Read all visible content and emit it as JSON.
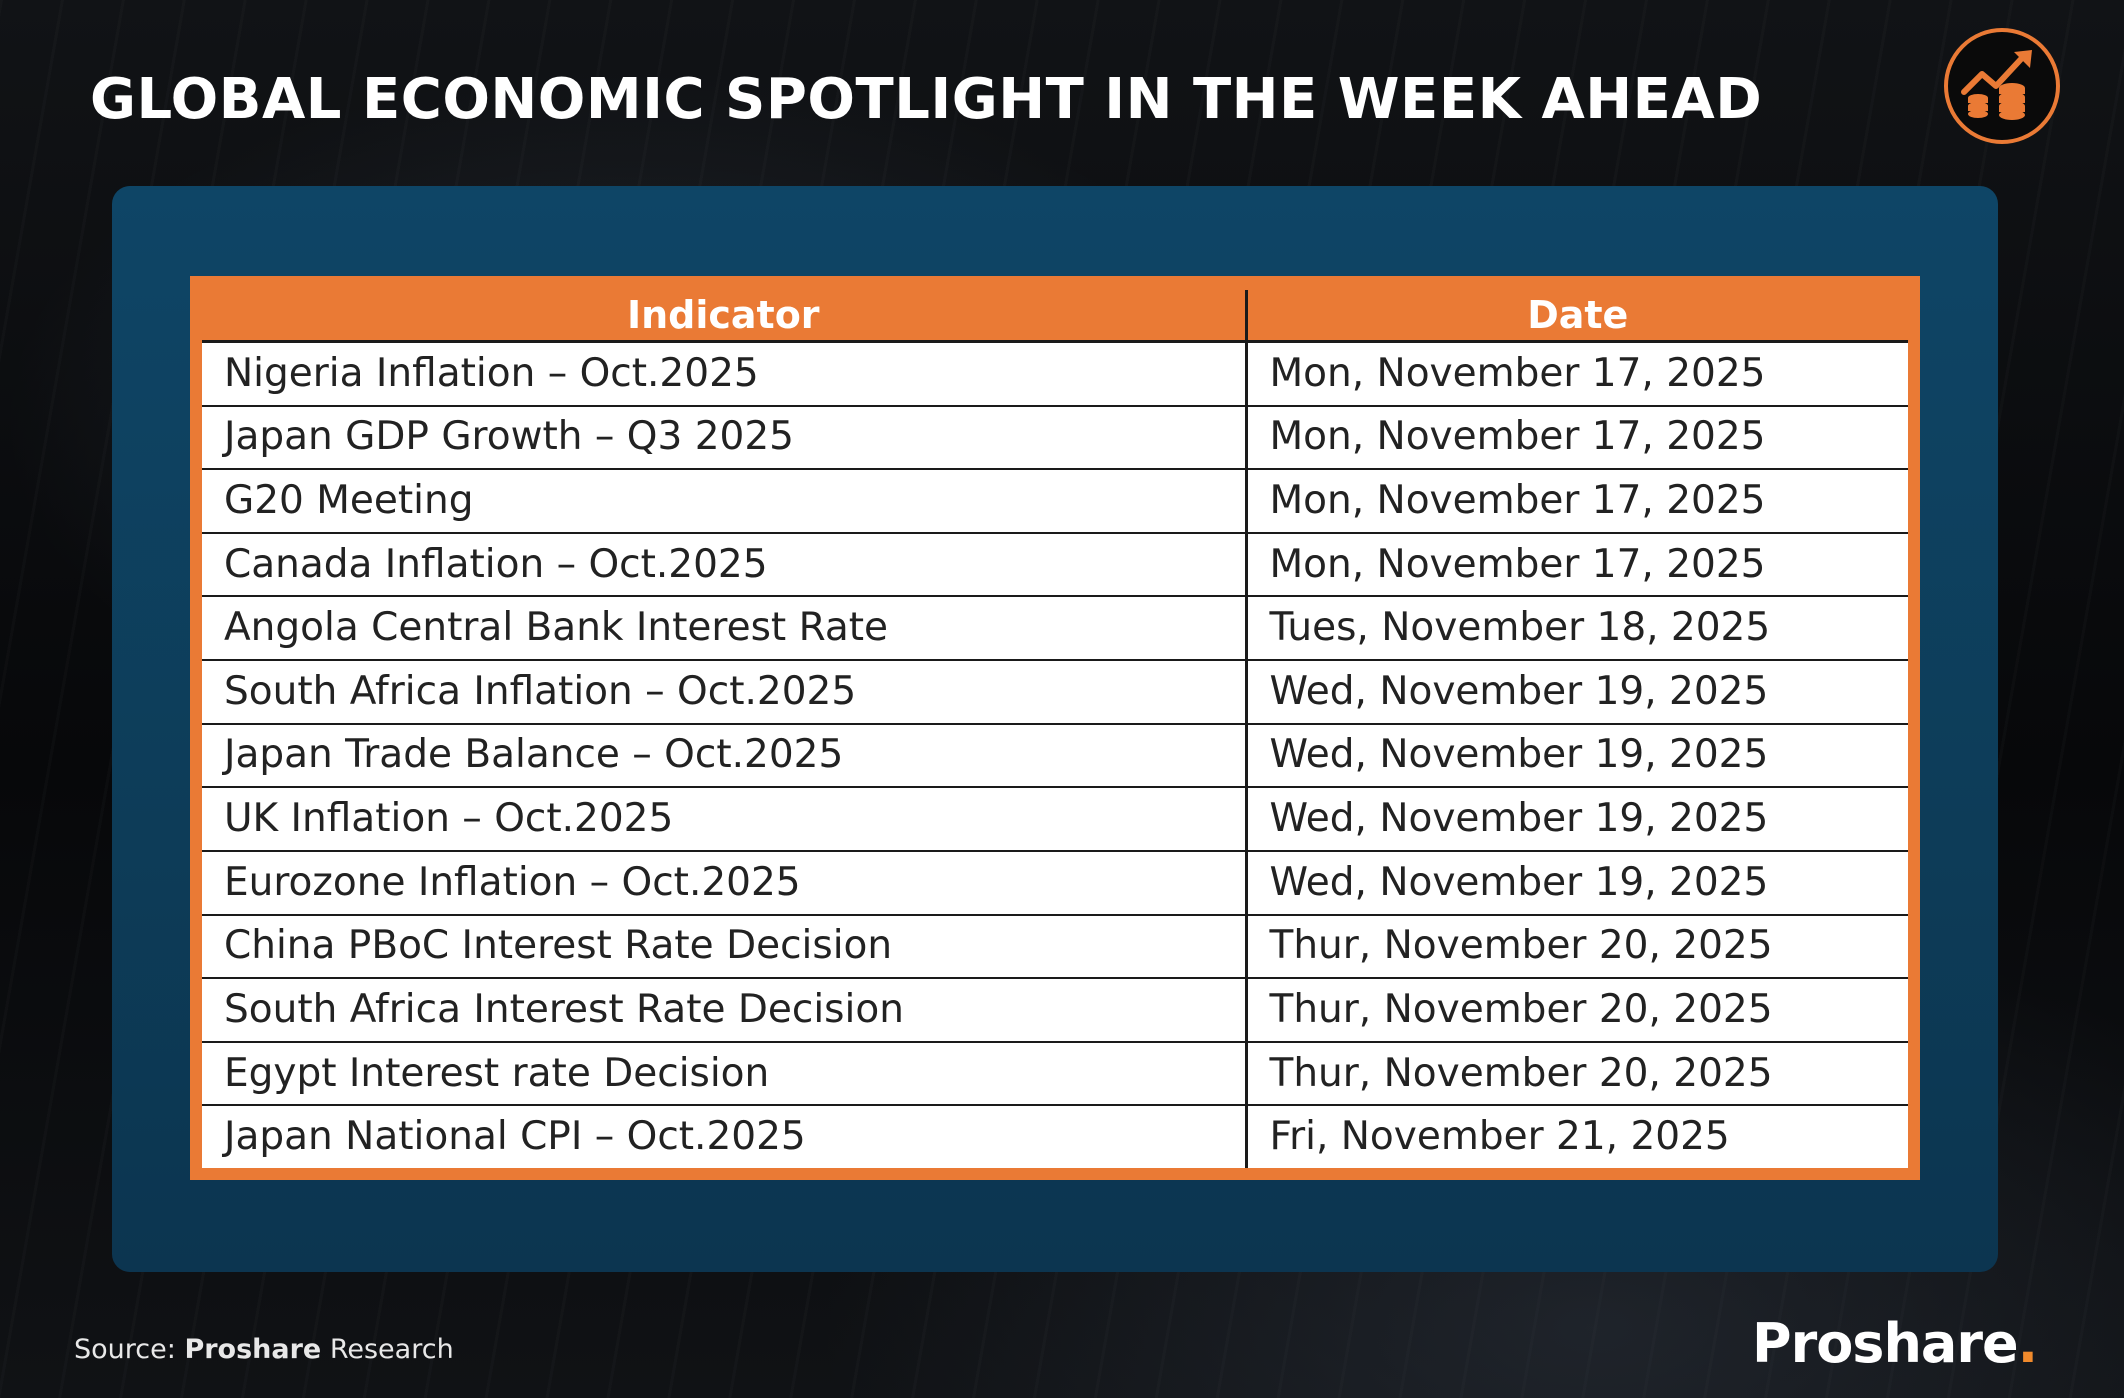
{
  "header": {
    "title": "GLOBAL ECONOMIC SPOTLIGHT IN THE WEEK AHEAD",
    "icon": "chart-growth-coins-icon",
    "accent_color": "#ea7a35"
  },
  "table": {
    "columns": [
      "Indicator",
      "Date"
    ],
    "rows": [
      {
        "indicator": "Nigeria Inflation – Oct.2025",
        "date": "Mon, November 17, 2025"
      },
      {
        "indicator": "Japan GDP Growth – Q3 2025",
        "date": "Mon, November 17, 2025"
      },
      {
        "indicator": "G20 Meeting",
        "date": "Mon, November 17, 2025"
      },
      {
        "indicator": "Canada Inflation – Oct.2025",
        "date": "Mon, November 17, 2025"
      },
      {
        "indicator": "Angola Central Bank Interest Rate",
        "date": "Tues, November 18, 2025"
      },
      {
        "indicator": "South Africa Inflation – Oct.2025",
        "date": "Wed, November 19, 2025"
      },
      {
        "indicator": "Japan Trade Balance – Oct.2025",
        "date": "Wed, November 19, 2025"
      },
      {
        "indicator": "UK Inflation – Oct.2025",
        "date": "Wed, November 19, 2025"
      },
      {
        "indicator": "Eurozone Inflation – Oct.2025",
        "date": "Wed, November 19, 2025"
      },
      {
        "indicator": "China PBoC Interest Rate Decision",
        "date": "Thur, November 20, 2025"
      },
      {
        "indicator": "South Africa Interest Rate Decision",
        "date": "Thur, November 20, 2025"
      },
      {
        "indicator": "Egypt Interest rate Decision",
        "date": "Thur, November 20, 2025"
      },
      {
        "indicator": "Japan National CPI – Oct.2025",
        "date": "Fri, November 21, 2025"
      }
    ]
  },
  "footer": {
    "source_label": "Source:",
    "source_name": "Proshare",
    "source_suffix": "Research",
    "brand_name": "Proshare",
    "brand_dot": "."
  }
}
